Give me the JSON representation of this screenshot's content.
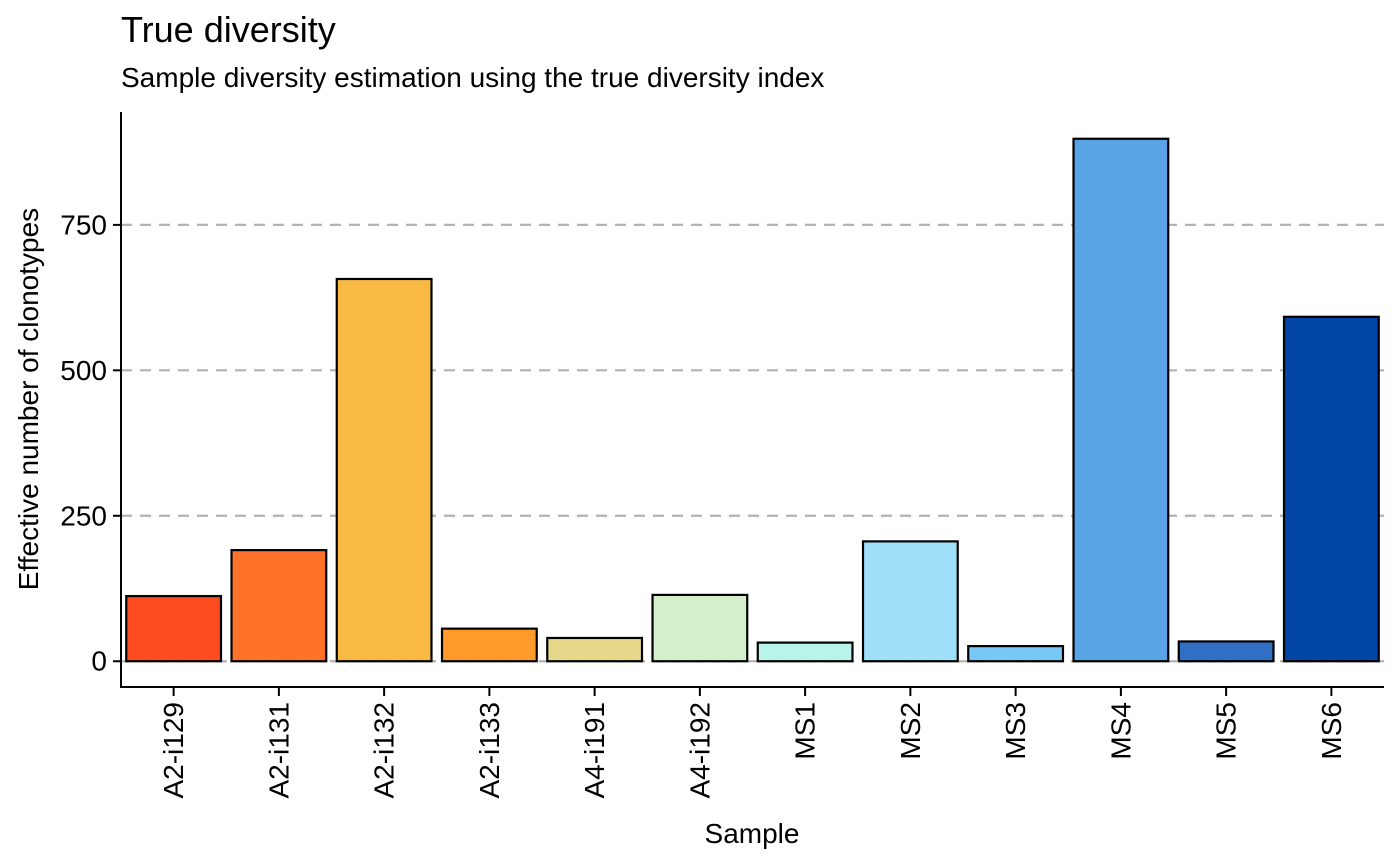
{
  "chart_data": {
    "type": "bar",
    "title": "True diversity",
    "subtitle": "Sample diversity estimation using the true diversity index",
    "xlabel": "Sample",
    "ylabel": "Effective number of clonotypes",
    "categories": [
      "A2-i129",
      "A2-i131",
      "A2-i132",
      "A2-i133",
      "A4-i191",
      "A4-i192",
      "MS1",
      "MS2",
      "MS3",
      "MS4",
      "MS5",
      "MS6"
    ],
    "values": [
      112,
      191,
      657,
      56,
      40,
      114,
      32,
      206,
      26,
      898,
      34,
      592
    ],
    "colors": [
      "#FF4B20",
      "#FF7229",
      "#F8BA43",
      "#FF9A2B",
      "#E6D88A",
      "#D3EFCC",
      "#B8F4EA",
      "#9FDFF7",
      "#78C8F7",
      "#5AA3E6",
      "#2F6FC4",
      "#0347A6"
    ],
    "yticks": [
      0,
      250,
      500,
      750
    ],
    "ylim": [
      -46,
      944
    ],
    "grid": "major-y dashed",
    "legend": "none"
  }
}
